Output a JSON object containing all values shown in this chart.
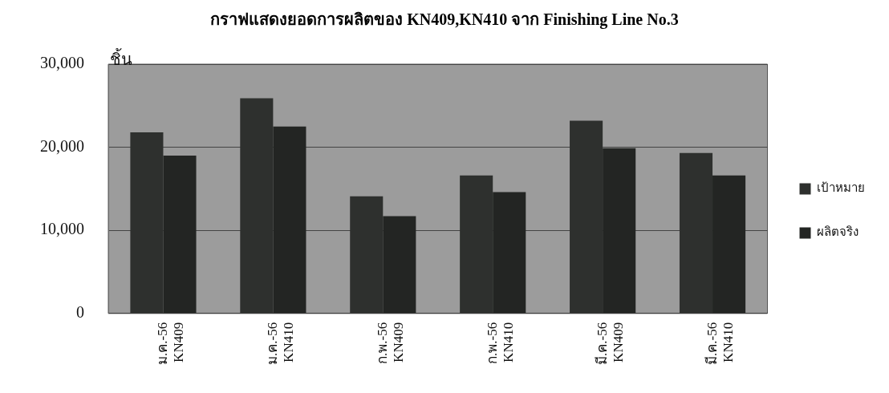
{
  "chart_data": {
    "type": "bar",
    "title": "กราฟแสดงยอดการผลิตของ KN409,KN410 จาก Finishing Line No.3",
    "ylabel": "ชิ้น",
    "categories": [
      "ม.ค.-56 KN409",
      "ม.ค.-56 KN410",
      "ก.พ.-56 KN409",
      "ก.พ.-56 KN410",
      "มี.ค.-56 KN409",
      "มี.ค.-56 KN410"
    ],
    "series": [
      {
        "name": "เป้าหมาย",
        "color": "#2e302e",
        "values": [
          21800,
          25900,
          14100,
          16600,
          23200,
          19300
        ]
      },
      {
        "name": "ผลิตจริง",
        "color": "#232523",
        "values": [
          19000,
          22500,
          11700,
          14600,
          19900,
          16600
        ]
      }
    ],
    "ylim": [
      0,
      30000
    ],
    "yticks": [
      {
        "value": 0,
        "label": "0"
      },
      {
        "value": 10000,
        "label": "10,000"
      },
      {
        "value": 20000,
        "label": "20,000"
      },
      {
        "value": 30000,
        "label": "30,000"
      }
    ],
    "grid": "y",
    "legend": "right"
  }
}
